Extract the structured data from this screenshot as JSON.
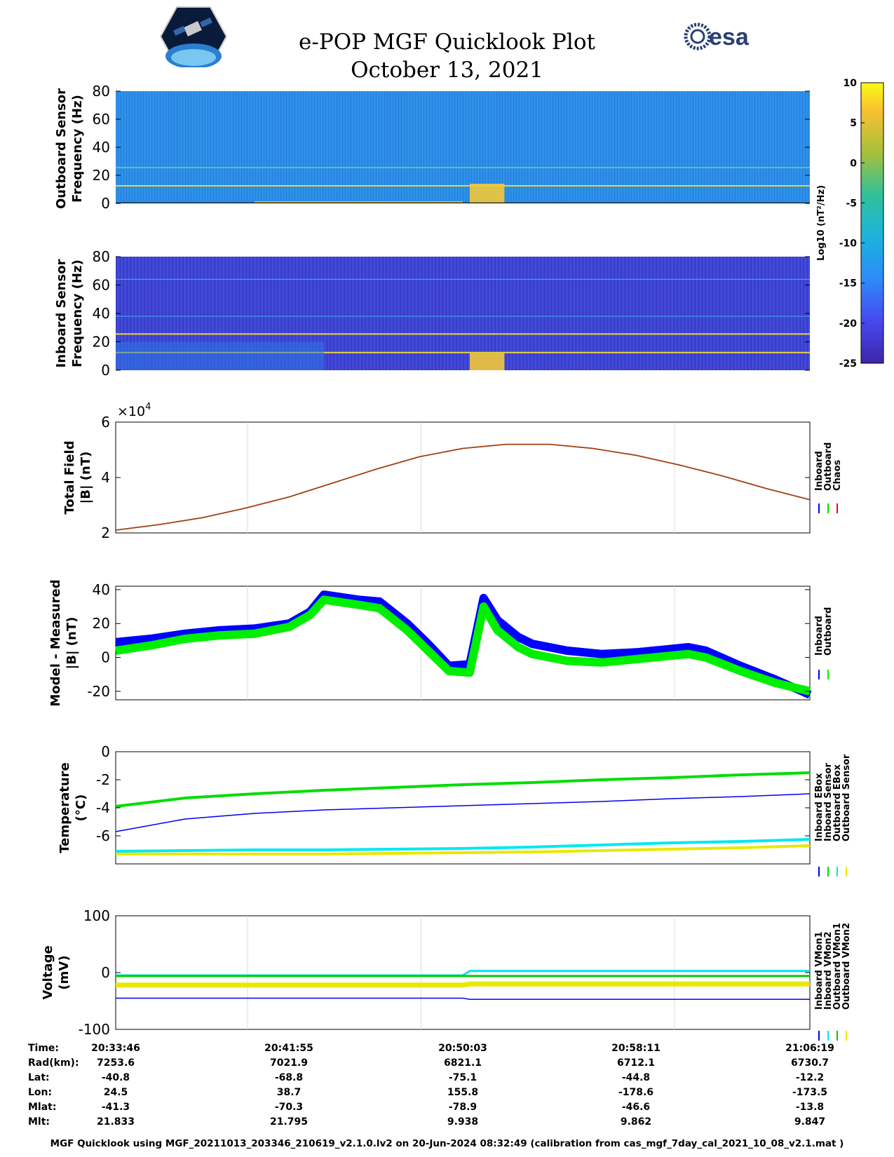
{
  "header": {
    "title_line1": "e-POP MGF Quicklook Plot",
    "title_line2": "October 13, 2021",
    "logo_left_icon": "cassiope-mission-patch",
    "logo_right_icon": "esa-logo",
    "logo_right_text": "esa"
  },
  "chart_data": [
    {
      "type": "heatmap",
      "ylabel": [
        "Outboard Sensor",
        "Frequency (Hz)"
      ],
      "yticks": [
        0,
        20,
        40,
        60,
        80
      ],
      "ylim": [
        0,
        80
      ],
      "notes_visible_lines_hz": [
        12.5,
        25.5
      ],
      "hot_spot_time_fraction": [
        0.51,
        0.56
      ]
    },
    {
      "type": "heatmap",
      "ylabel": [
        "Inboard Sensor",
        "Frequency (Hz)"
      ],
      "yticks": [
        0,
        20,
        40,
        60,
        80
      ],
      "ylim": [
        0,
        80
      ],
      "notes_visible_lines_hz": [
        12.5,
        25.5,
        38,
        64
      ]
    },
    {
      "type": "colorbar",
      "label": "Log10 (nT²/Hz)",
      "ticks": [
        10,
        5,
        0,
        -5,
        -10,
        -15,
        -20,
        -25
      ],
      "range": [
        -25,
        10
      ],
      "colormap": "parula"
    },
    {
      "type": "line",
      "ylabel": [
        "Total Field",
        "|B| (nT)"
      ],
      "exponent_label": "×10",
      "exponent_power": "4",
      "ylim": [
        2,
        6
      ],
      "yticks": [
        2,
        4,
        6
      ],
      "series": [
        {
          "name": "Chaos",
          "color": "#cc0000",
          "values": [
            2.1,
            2.3,
            2.55,
            2.9,
            3.3,
            3.8,
            4.3,
            4.75,
            5.05,
            5.2,
            5.2,
            5.05,
            4.8,
            4.45,
            4.05,
            3.6,
            3.2
          ]
        }
      ],
      "legend": [
        {
          "name": "Inboard",
          "color": "#0000ff"
        },
        {
          "name": "Outboard",
          "color": "#00dd00"
        },
        {
          "name": "Chaos",
          "color": "#ff0000"
        }
      ],
      "legend_position": "right"
    },
    {
      "type": "line",
      "ylabel": [
        "Model - Measured",
        "|B| (nT)"
      ],
      "ylim": [
        -25,
        42
      ],
      "yticks": [
        40,
        20,
        0,
        -20
      ],
      "x": [
        0,
        0.05,
        0.1,
        0.15,
        0.2,
        0.25,
        0.28,
        0.3,
        0.35,
        0.38,
        0.42,
        0.45,
        0.48,
        0.51,
        0.53,
        0.55,
        0.58,
        0.6,
        0.65,
        0.7,
        0.75,
        0.8,
        0.825,
        0.85,
        0.9,
        0.95,
        1.0
      ],
      "series": [
        {
          "name": "Inboard",
          "color": "#0000ff",
          "values": [
            9,
            11,
            14,
            16,
            17,
            20,
            27,
            37,
            34,
            33,
            20,
            8,
            -5,
            -4,
            35,
            22,
            12,
            8,
            4,
            2,
            3,
            5,
            6,
            4,
            -5,
            -13,
            -22
          ]
        },
        {
          "name": "Outboard",
          "color": "#00ee00",
          "values": [
            4,
            7,
            11,
            13,
            14,
            18,
            25,
            34,
            31,
            29,
            16,
            4,
            -8,
            -9,
            30,
            16,
            6,
            2,
            -2,
            -3,
            -1,
            1,
            2,
            0,
            -8,
            -15,
            -20
          ]
        }
      ],
      "legend": [
        {
          "name": "Inboard",
          "color": "#0000ff"
        },
        {
          "name": "Outboard",
          "color": "#00ee00"
        }
      ],
      "legend_position": "right"
    },
    {
      "type": "line",
      "ylabel": [
        "Temperature",
        "(°C)"
      ],
      "ylim": [
        -8,
        0
      ],
      "yticks": [
        0,
        -2,
        -4,
        -6
      ],
      "x": [
        0,
        0.1,
        0.2,
        0.3,
        0.4,
        0.5,
        0.6,
        0.7,
        0.8,
        0.9,
        1.0
      ],
      "series": [
        {
          "name": "Inboard EBox",
          "color": "#0000ee",
          "values": [
            -5.7,
            -4.8,
            -4.4,
            -4.15,
            -4.0,
            -3.85,
            -3.7,
            -3.55,
            -3.35,
            -3.2,
            -3.0
          ]
        },
        {
          "name": "Inboard Sensor",
          "color": "#00dd00",
          "values": [
            -3.9,
            -3.3,
            -3.0,
            -2.75,
            -2.55,
            -2.35,
            -2.2,
            -2.0,
            -1.85,
            -1.65,
            -1.5
          ]
        },
        {
          "name": "Outboard EBox",
          "color": "#00e8f0",
          "values": [
            -7.1,
            -7.05,
            -7.0,
            -7.0,
            -6.95,
            -6.9,
            -6.8,
            -6.65,
            -6.5,
            -6.4,
            -6.25
          ]
        },
        {
          "name": "Outboard Sensor",
          "color": "#e8e800",
          "values": [
            -7.3,
            -7.3,
            -7.3,
            -7.3,
            -7.25,
            -7.2,
            -7.15,
            -7.05,
            -6.95,
            -6.85,
            -6.7
          ]
        }
      ],
      "legend_position": "right"
    },
    {
      "type": "line",
      "ylabel": [
        "Voltage",
        "(mV)"
      ],
      "ylim": [
        -100,
        100
      ],
      "yticks": [
        100,
        0,
        -100
      ],
      "x": [
        0,
        0.5,
        0.51,
        1.0
      ],
      "series": [
        {
          "name": "Inboard VMon1",
          "color": "#0000ee",
          "values": [
            -45,
            -45,
            -47,
            -47
          ]
        },
        {
          "name": "Inboard VMon2",
          "color": "#00e8f0",
          "values": [
            -5,
            -5,
            3,
            3
          ]
        },
        {
          "name": "Outboard VMon1",
          "color": "#00cc00",
          "values": [
            -6,
            -6,
            -6,
            -6
          ]
        },
        {
          "name": "Outboard VMon2",
          "color": "#e8e800",
          "values": [
            -22,
            -22,
            -20,
            -20
          ]
        }
      ],
      "legend_position": "right"
    }
  ],
  "ephemeris": {
    "labels": [
      "Time:",
      "Rad(km):",
      "Lat:",
      "Lon:",
      "Mlat:",
      "Mlt:"
    ],
    "columns": [
      {
        "time": "20:33:46",
        "rad": "7253.6",
        "lat": "-40.8",
        "lon": "24.5",
        "mlat": "-41.3",
        "mlt": "21.833"
      },
      {
        "time": "20:41:55",
        "rad": "7021.9",
        "lat": "-68.8",
        "lon": "38.7",
        "mlat": "-70.3",
        "mlt": "21.795"
      },
      {
        "time": "20:50:03",
        "rad": "6821.1",
        "lat": "-75.1",
        "lon": "155.8",
        "mlat": "-78.9",
        "mlt": "9.938"
      },
      {
        "time": "20:58:11",
        "rad": "6712.1",
        "lat": "-44.8",
        "lon": "-178.6",
        "mlat": "-46.6",
        "mlt": "9.862"
      },
      {
        "time": "21:06:19",
        "rad": "6730.7",
        "lat": "-12.2",
        "lon": "-173.5",
        "mlat": "-13.8",
        "mlt": "9.847"
      }
    ]
  },
  "footer": "MGF Quicklook using MGF_20211013_203346_210619_v2.1.0.lv2 on 20-Jun-2024 08:32:49 (calibration from cas_mgf_7day_cal_2021_10_08_v2.1.mat )"
}
